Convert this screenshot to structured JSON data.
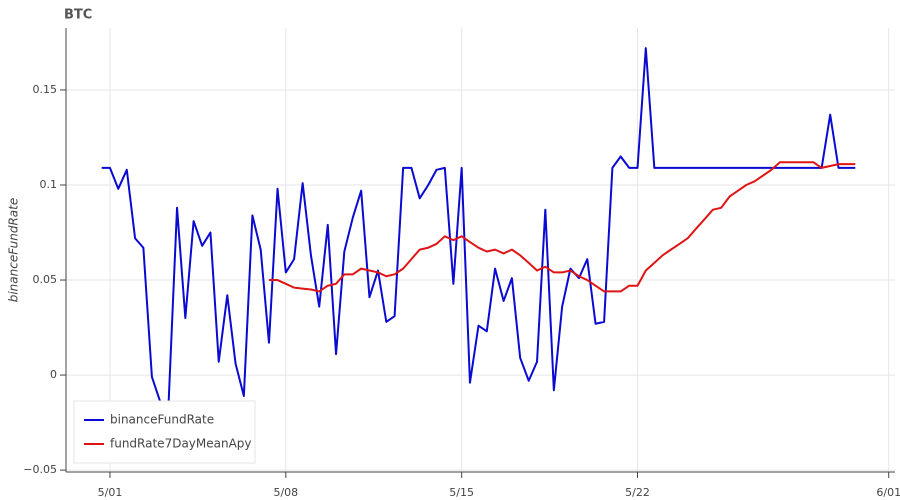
{
  "chart_data": {
    "type": "line",
    "title": "BTC",
    "y_label": "binanceFundRate",
    "x": [
      -0.33,
      0,
      0.33,
      0.67,
      1,
      1.33,
      1.67,
      2,
      2.33,
      2.67,
      3,
      3.33,
      3.67,
      4,
      4.33,
      4.67,
      5,
      5.33,
      5.67,
      6,
      6.33,
      6.67,
      7,
      7.33,
      7.67,
      8,
      8.33,
      8.67,
      9,
      9.33,
      9.67,
      10,
      10.33,
      10.67,
      11,
      11.33,
      11.67,
      12,
      12.33,
      12.67,
      13,
      13.33,
      13.67,
      14,
      14.33,
      14.67,
      15,
      15.33,
      15.67,
      16,
      16.33,
      16.67,
      17,
      17.33,
      17.67,
      18,
      18.33,
      18.67,
      19,
      19.33,
      19.67,
      20,
      20.33,
      20.67,
      21,
      21.33,
      21.67,
      22,
      22.33,
      22.67,
      23,
      23.33,
      23.67,
      24,
      24.33,
      24.67,
      25,
      25.33,
      25.67,
      26,
      26.33,
      26.67,
      27,
      27.33,
      27.67,
      28,
      28.33,
      28.67,
      29,
      29.33,
      29.67
    ],
    "series": [
      {
        "name": "binanceFundRate",
        "color": "#0a0ad2",
        "values": [
          0.109,
          0.109,
          0.098,
          0.108,
          0.072,
          0.067,
          -0.001,
          -0.014,
          -0.016,
          0.088,
          0.03,
          0.081,
          0.068,
          0.075,
          0.007,
          0.042,
          0.006,
          -0.011,
          0.084,
          0.066,
          0.017,
          0.098,
          0.054,
          0.061,
          0.101,
          0.063,
          0.036,
          0.079,
          0.011,
          0.065,
          0.083,
          0.097,
          0.041,
          0.055,
          0.028,
          0.031,
          0.109,
          0.109,
          0.093,
          0.1,
          0.108,
          0.109,
          0.048,
          0.109,
          -0.004,
          0.026,
          0.023,
          0.056,
          0.039,
          0.051,
          0.009,
          -0.003,
          0.007,
          0.087,
          -0.008,
          0.036,
          0.056,
          0.051,
          0.061,
          0.027,
          0.028,
          0.109,
          0.115,
          0.109,
          0.109,
          0.172,
          0.109,
          0.109,
          0.109,
          0.109,
          0.109,
          0.109,
          0.109,
          0.109,
          0.109,
          0.109,
          0.109,
          0.109,
          0.109,
          0.109,
          0.109,
          0.109,
          0.109,
          0.109,
          0.109,
          0.109,
          0.109,
          0.137,
          0.109,
          0.109,
          0.109
        ]
      },
      {
        "name": "fundRate7DayMeanApy",
        "color": "#e01414",
        "values": [
          null,
          null,
          null,
          null,
          null,
          null,
          null,
          null,
          null,
          null,
          null,
          null,
          null,
          null,
          null,
          null,
          null,
          null,
          null,
          null,
          0.05,
          0.05,
          0.048,
          0.046,
          0.0455,
          0.045,
          0.044,
          0.047,
          0.048,
          0.053,
          0.053,
          0.056,
          0.055,
          0.054,
          0.052,
          0.053,
          0.056,
          0.061,
          0.066,
          0.067,
          0.069,
          0.073,
          0.071,
          0.073,
          0.07,
          0.067,
          0.065,
          0.066,
          0.064,
          0.066,
          0.063,
          0.059,
          0.055,
          0.057,
          0.054,
          0.054,
          0.055,
          0.052,
          0.05,
          0.047,
          0.044,
          0.044,
          0.044,
          0.047,
          0.047,
          0.055,
          0.059,
          0.063,
          0.066,
          0.069,
          0.072,
          0.077,
          0.082,
          0.087,
          0.088,
          0.094,
          0.097,
          0.1,
          0.102,
          0.105,
          0.108,
          0.112,
          0.112,
          0.112,
          0.112,
          0.112,
          0.109,
          0.11,
          0.111,
          0.111,
          0.111
        ]
      }
    ],
    "xlim": [
      -1.75,
      31.25
    ],
    "xticks": [
      {
        "value": 0,
        "label": "5/01"
      },
      {
        "value": 7,
        "label": "5/08"
      },
      {
        "value": 14,
        "label": "5/15"
      },
      {
        "value": 21,
        "label": "5/22"
      },
      {
        "value": 31,
        "label": "6/01"
      }
    ],
    "ylim": [
      -0.051,
      0.1826
    ],
    "yticks": [
      {
        "value": -0.05,
        "label": "−0.05"
      },
      0,
      0.05,
      {
        "value": 0.1,
        "label": "0.1"
      },
      0.15
    ],
    "grid": true,
    "legend": "bottom-left"
  }
}
